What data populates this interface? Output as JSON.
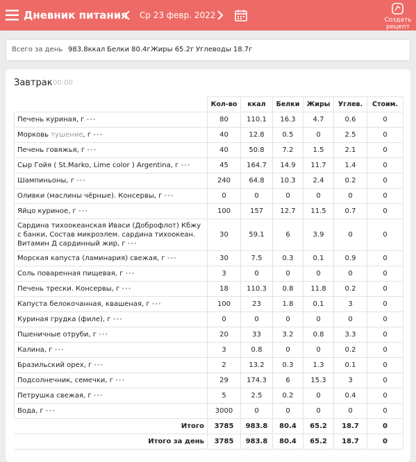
{
  "header": {
    "title": "Дневник питания",
    "date": "Ср 23 февр. 2022",
    "create_button": "Создать рецепт"
  },
  "summary": {
    "label": "Всего за день",
    "kcal": "983.8ккал",
    "protein": "Белки 80.4г",
    "fat": "Жиры 65.2г",
    "carbs": "Углеводы 18.7г"
  },
  "meal": {
    "title": "Завтрак",
    "time": "00:00",
    "columns": [
      "Кол-во",
      "ккал",
      "Белки",
      "Жиры",
      "Углев.",
      "Стоим."
    ],
    "rows": [
      {
        "name": "Печень куриная, г",
        "values": [
          80,
          110.1,
          16.3,
          4.7,
          0.6,
          0
        ]
      },
      {
        "name": "Морковь",
        "note": "тушение",
        "suffix": ", г",
        "values": [
          40,
          12.8,
          0.5,
          0,
          2.5,
          0
        ]
      },
      {
        "name": "Печень говяжья, г",
        "values": [
          40,
          50.8,
          7.2,
          1.5,
          2.1,
          0
        ]
      },
      {
        "name": "Сыр Гойя ( St.Marko, Lime color ) Argentina, г",
        "values": [
          45,
          164.7,
          14.9,
          11.7,
          1.4,
          0
        ]
      },
      {
        "name": "Шампиньоны, г",
        "values": [
          240,
          64.8,
          10.3,
          2.4,
          0.2,
          0
        ]
      },
      {
        "name": "Оливки (маслины чёрные). Консервы, г",
        "values": [
          0,
          0,
          0,
          0,
          0,
          0
        ]
      },
      {
        "name": "Яйцо куриное, г",
        "values": [
          100,
          157,
          12.7,
          11.5,
          0.7,
          0
        ]
      },
      {
        "name": "Сардина тихоокеанская Иваси (Доброфлот) Кбжу с банки, Состав микроэлем. сардина тихоокеан. Витамин Д сардинный жир, г",
        "values": [
          30,
          59.1,
          6,
          3.9,
          0,
          0
        ]
      },
      {
        "name": "Морская капуста (ламинария) свежая, г",
        "values": [
          30,
          7.5,
          0.3,
          0.1,
          0.9,
          0
        ]
      },
      {
        "name": "Соль поваренная пищевая, г",
        "values": [
          3,
          0,
          0,
          0,
          0,
          0
        ]
      },
      {
        "name": "Печень трески. Консервы, г",
        "values": [
          18,
          110.3,
          0.8,
          11.8,
          0.2,
          0
        ]
      },
      {
        "name": "Капуста белокочанная, квашеная, г",
        "values": [
          100,
          23,
          1.8,
          0.1,
          3,
          0
        ]
      },
      {
        "name": "Куриная грудка (филе), г",
        "values": [
          0,
          0,
          0,
          0,
          0,
          0
        ]
      },
      {
        "name": "Пшеничные отруби, г",
        "values": [
          20,
          33,
          3.2,
          0.8,
          3.3,
          0
        ]
      },
      {
        "name": "Калина, г",
        "values": [
          3,
          0.8,
          0,
          0,
          0.2,
          0
        ]
      },
      {
        "name": "Бразильский орех, г",
        "values": [
          2,
          13.2,
          0.3,
          1.3,
          0.1,
          0
        ]
      },
      {
        "name": "Подсолнечник, семечки, г",
        "values": [
          29,
          174.3,
          6,
          15.3,
          3,
          0
        ]
      },
      {
        "name": "Петрушка свежая, г",
        "values": [
          5,
          2.5,
          0.2,
          0,
          0.4,
          0
        ]
      },
      {
        "name": "Вода, г",
        "values": [
          3000,
          0,
          0,
          0,
          0,
          0
        ]
      }
    ],
    "totals": [
      {
        "label": "Итого",
        "values": [
          3785,
          983.8,
          80.4,
          65.2,
          18.7,
          0
        ]
      },
      {
        "label": "Итого за день",
        "values": [
          3785,
          983.8,
          80.4,
          65.2,
          18.7,
          0
        ]
      }
    ]
  }
}
